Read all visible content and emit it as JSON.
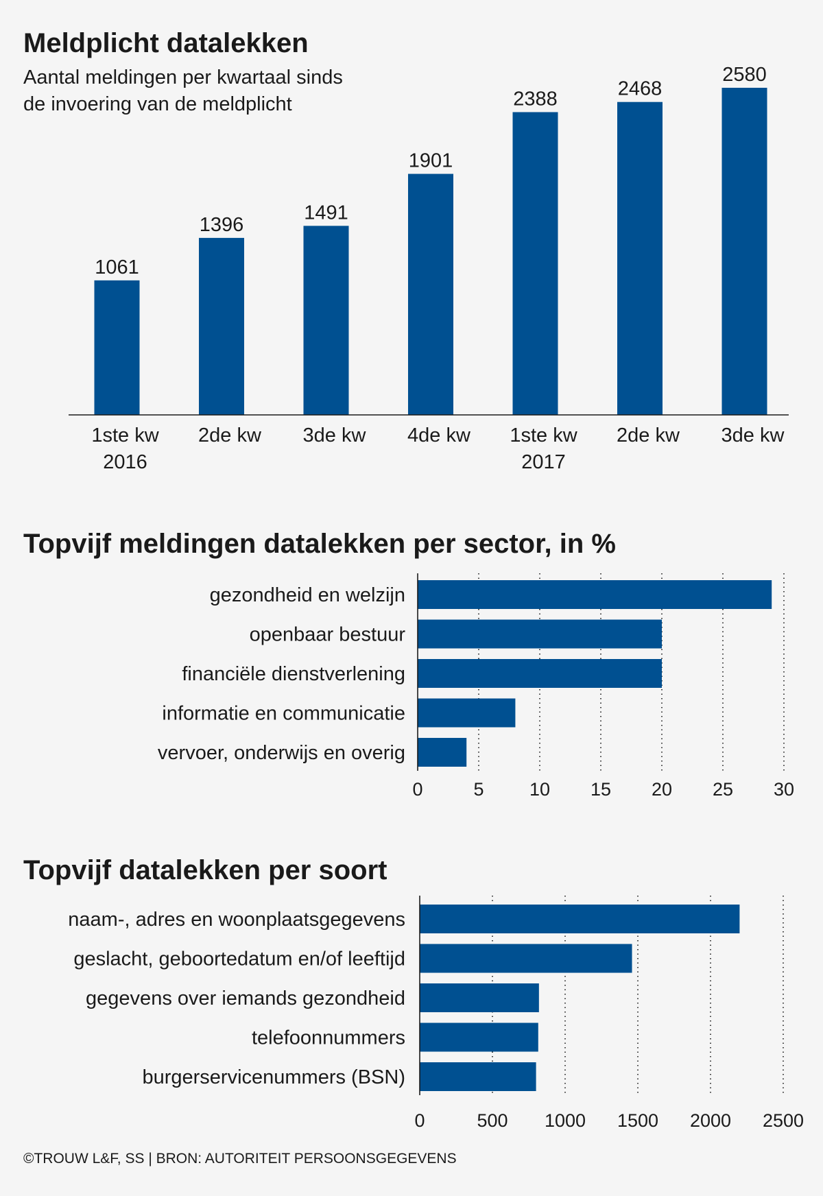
{
  "footer": "©TROUW L&F, SS | BRON: AUTORITEIT PERSOONSGEGEVENS",
  "colors": {
    "bar": "#005091",
    "text": "#1a1a1a",
    "background": "#f5f5f5"
  },
  "chart_data": [
    {
      "type": "bar",
      "title": "Meldplicht datalekken",
      "subtitle": [
        "Aantal meldingen per kwartaal sinds",
        "de invoering van de meldplicht"
      ],
      "categories": [
        [
          "1ste kw",
          "2016"
        ],
        [
          "2de kw"
        ],
        [
          "3de kw"
        ],
        [
          "4de kw"
        ],
        [
          "1ste kw",
          "2017"
        ],
        [
          "2de kw"
        ],
        [
          "3de kw"
        ]
      ],
      "values": [
        1061,
        1396,
        1491,
        1901,
        2388,
        2468,
        2580
      ],
      "ylim": [
        0,
        2580
      ],
      "data_labels": true,
      "grid": false
    },
    {
      "type": "bar",
      "orientation": "horizontal",
      "title": "Topvijf meldingen datalekken per sector, in %",
      "categories": [
        "gezondheid en welzijn",
        "openbaar bestuur",
        "financiële dienstverlening",
        "informatie en communicatie",
        "vervoer, onderwijs en overig"
      ],
      "values": [
        29,
        20,
        20,
        8,
        4
      ],
      "xlim": [
        0,
        30
      ],
      "xticks": [
        0,
        5,
        10,
        15,
        20,
        25,
        30
      ],
      "grid": true
    },
    {
      "type": "bar",
      "orientation": "horizontal",
      "title": "Topvijf datalekken per soort",
      "categories": [
        "naam-, adres en woonplaatsgegevens",
        "geslacht, geboortedatum en/of leeftijd",
        "gegevens over iemands gezondheid",
        "telefoonnummers",
        "burgerservicenummers (BSN)"
      ],
      "values": [
        2200,
        1460,
        820,
        815,
        800
      ],
      "xlim": [
        0,
        2500
      ],
      "xticks": [
        0,
        500,
        1000,
        1500,
        2000,
        2500
      ],
      "grid": true
    }
  ]
}
